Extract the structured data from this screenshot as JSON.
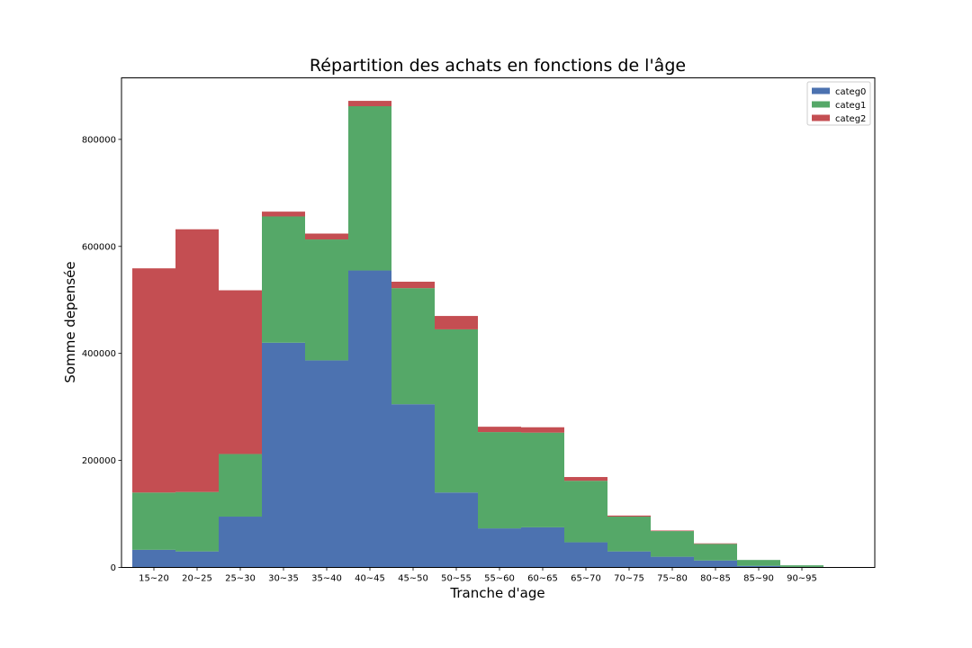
{
  "chart_data": {
    "type": "bar",
    "stacked": true,
    "title": "Répartition des achats en fonctions de l'âge",
    "xlabel": "Tranche d'age",
    "ylabel": "Somme depensée",
    "categories": [
      "15~20",
      "20~25",
      "25~30",
      "30~35",
      "35~40",
      "40~45",
      "45~50",
      "50~55",
      "55~60",
      "60~65",
      "65~70",
      "70~75",
      "75~80",
      "80~85",
      "85~90",
      "90~95"
    ],
    "series": [
      {
        "name": "categ0",
        "color": "#4c72b0",
        "values": [
          33000,
          30000,
          95000,
          420000,
          387000,
          555000,
          305000,
          140000,
          73000,
          75000,
          47000,
          30000,
          20000,
          13000,
          3000,
          1000
        ]
      },
      {
        "name": "categ1",
        "color": "#55a868",
        "values": [
          107000,
          111000,
          117000,
          236000,
          226000,
          307000,
          217000,
          305000,
          180000,
          177000,
          115000,
          65000,
          48000,
          31000,
          11000,
          3000
        ]
      },
      {
        "name": "categ2",
        "color": "#c44e52",
        "values": [
          419000,
          491000,
          306000,
          9000,
          11000,
          10000,
          12000,
          25000,
          10000,
          10000,
          7000,
          2000,
          1000,
          1000,
          0,
          0
        ]
      }
    ],
    "ylim": [
      0,
      915000
    ],
    "yticks": [
      0,
      200000,
      400000,
      600000,
      800000
    ],
    "ytick_labels": [
      "0",
      "200000",
      "400000",
      "600000",
      "800000"
    ],
    "grid": false,
    "legend_position": "top-right"
  }
}
